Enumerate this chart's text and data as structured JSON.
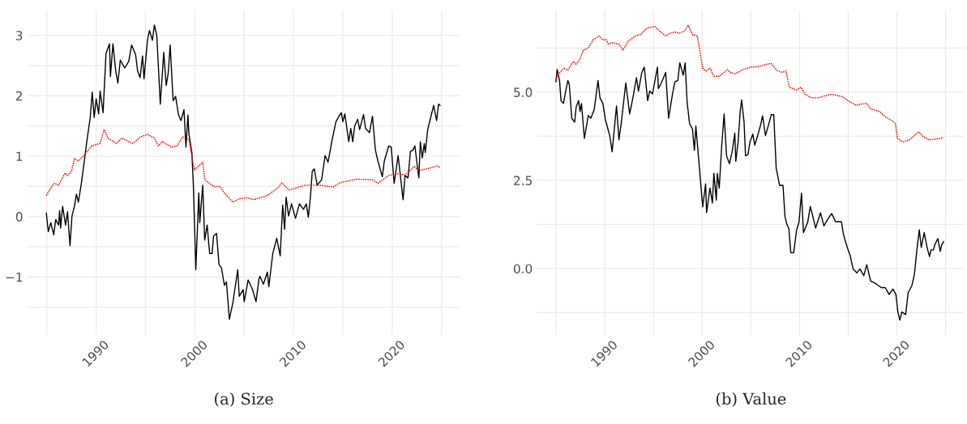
{
  "chart_data": [
    {
      "type": "line",
      "title": "(a) Size",
      "xlim": [
        1983.0,
        2026.9
      ],
      "ylim": [
        -1.96,
        3.41
      ],
      "xticks": [
        {
          "value": 1985,
          "label": null
        },
        1990,
        {
          "value": 1995,
          "label": null
        },
        2000,
        {
          "value": 2005,
          "label": null
        },
        2010,
        {
          "value": 2015,
          "label": null
        },
        2020,
        {
          "value": 2025,
          "label": null
        }
      ],
      "yticks": [
        {
          "value": -1.5,
          "label": null
        },
        {
          "value": -1,
          "label": "−1"
        },
        {
          "value": -0.5,
          "label": null
        },
        0,
        {
          "value": 0.5,
          "label": null
        },
        1,
        {
          "value": 1.5,
          "label": null
        },
        2,
        {
          "value": 2.5,
          "label": null
        },
        3
      ],
      "grid": true,
      "series": [
        {
          "color": "#000000",
          "line_style": "solid",
          "x": [
            1984.95,
            1985.15,
            1985.4,
            1985.7,
            1985.9,
            1986.2,
            1986.3,
            1986.4,
            1986.6,
            1986.9,
            1987.1,
            1987.35,
            1987.55,
            1987.8,
            1988.0,
            1988.2,
            1988.5,
            1988.8,
            1989.05,
            1989.4,
            1989.6,
            1989.8,
            1990.0,
            1990.25,
            1990.4,
            1990.7,
            1991.0,
            1991.35,
            1991.45,
            1991.7,
            1992.0,
            1992.2,
            1992.45,
            1992.9,
            1993.3,
            1993.6,
            1994.0,
            1994.2,
            1994.45,
            1994.7,
            1994.85,
            1995.2,
            1995.4,
            1995.7,
            1995.9,
            1996.15,
            1996.5,
            1996.85,
            1997.1,
            1997.3,
            1997.5,
            1997.8,
            1998.05,
            1998.35,
            1998.6,
            1998.9,
            1999.1,
            1999.3,
            1999.4,
            1999.7,
            1999.85,
            2000.1,
            2000.4,
            2000.5,
            2000.8,
            2001.0,
            2001.25,
            2001.5,
            2001.75,
            2001.9,
            2002.2,
            2002.45,
            2002.7,
            2003.0,
            2003.2,
            2003.5,
            2003.85,
            2004.35,
            2004.5,
            2004.9,
            2005.0,
            2005.4,
            2005.85,
            2006.2,
            2006.5,
            2006.6,
            2006.95,
            2007.35,
            2007.5,
            2007.9,
            2008.3,
            2008.65,
            2008.9,
            2009.1,
            2009.25,
            2009.5,
            2009.8,
            2010.2,
            2010.6,
            2011.0,
            2011.3,
            2011.5,
            2011.7,
            2011.9,
            2012.1,
            2012.4,
            2012.85,
            2013.2,
            2013.5,
            2013.9,
            2014.3,
            2014.6,
            2014.85,
            2015.0,
            2015.2,
            2015.6,
            2015.8,
            2016.0,
            2016.2,
            2016.5,
            2016.7,
            2017.1,
            2017.3,
            2017.7,
            2018.0,
            2018.3,
            2018.55,
            2019.0,
            2019.2,
            2019.65,
            2019.9,
            2020.2,
            2020.6,
            2021.1,
            2021.3,
            2021.6,
            2021.85,
            2022.1,
            2022.3,
            2022.5,
            2022.7,
            2022.85,
            2023.05,
            2023.25,
            2023.35,
            2023.6,
            2023.9,
            2024.2,
            2024.5,
            2024.7,
            2024.85
          ],
          "values": [
            0.06,
            -0.25,
            -0.1,
            -0.3,
            -0.05,
            -0.14,
            0.1,
            -0.19,
            0.17,
            -0.14,
            0.08,
            -0.48,
            0.01,
            0.17,
            0.37,
            0.24,
            0.55,
            0.92,
            1.24,
            1.64,
            2.06,
            1.64,
            1.95,
            1.7,
            2.08,
            1.72,
            2.7,
            2.86,
            2.32,
            2.86,
            2.39,
            2.21,
            2.59,
            2.46,
            2.57,
            2.84,
            2.68,
            2.41,
            2.3,
            2.66,
            2.28,
            2.92,
            3.08,
            2.92,
            3.17,
            2.99,
            1.86,
            2.72,
            2.17,
            2.37,
            2.84,
            1.92,
            1.99,
            1.68,
            1.59,
            1.77,
            1.15,
            1.68,
            1.37,
            1.06,
            0.52,
            -0.88,
            0.39,
            -0.1,
            0.52,
            -0.39,
            -0.14,
            -0.61,
            -0.61,
            -0.32,
            -0.28,
            -0.79,
            -0.85,
            -1.14,
            -1.08,
            -1.7,
            -1.43,
            -0.88,
            -1.32,
            -1.21,
            -1.41,
            -1.05,
            -1.21,
            -1.41,
            -1.03,
            -0.99,
            -1.12,
            -0.92,
            -1.16,
            -0.61,
            -0.36,
            -0.65,
            0.19,
            -0.21,
            0.32,
            0.01,
            0.21,
            -0.03,
            0.21,
            0.12,
            0.21,
            -0.01,
            0.3,
            0.75,
            0.79,
            0.52,
            0.61,
            1.01,
            0.9,
            1.26,
            1.57,
            1.66,
            1.72,
            1.57,
            1.7,
            1.24,
            1.46,
            1.24,
            1.5,
            1.61,
            1.44,
            1.69,
            1.46,
            1.39,
            1.66,
            1.1,
            0.92,
            0.66,
            0.92,
            1.17,
            1.15,
            0.55,
            1.01,
            0.28,
            0.68,
            0.64,
            1.08,
            1.1,
            1.17,
            0.9,
            0.64,
            1.24,
            0.97,
            1.21,
            1.06,
            1.44,
            1.64,
            1.84,
            1.59,
            1.86,
            1.84
          ]
        },
        {
          "color": "#ff0000",
          "line_style": "dotted",
          "x": [
            1984.95,
            1985.35,
            1985.75,
            1986.2,
            1986.85,
            1987.1,
            1987.5,
            1987.8,
            1988.2,
            1988.75,
            1989.55,
            1990.4,
            1990.8,
            1991.2,
            1992.05,
            1992.6,
            1993.7,
            1994.5,
            1995.2,
            1995.9,
            1996.3,
            1996.7,
            1997.65,
            1998.2,
            1998.75,
            1999.4,
            1999.95,
            2000.4,
            2000.8,
            2001.0,
            2001.9,
            2002.55,
            2003.0,
            2003.85,
            2004.6,
            2005.3,
            2006.0,
            2007.35,
            2008.45,
            2008.8,
            2009.55,
            2011.2,
            2012.55,
            2014.05,
            2014.7,
            2016.35,
            2018.0,
            2018.55,
            2019.65,
            2020.45,
            2021.3,
            2022.25,
            2022.65,
            2023.75,
            2024.6,
            2024.85
          ],
          "values": [
            0.35,
            0.46,
            0.55,
            0.52,
            0.72,
            0.68,
            0.75,
            0.96,
            0.92,
            1.01,
            1.17,
            1.21,
            1.44,
            1.3,
            1.21,
            1.3,
            1.21,
            1.32,
            1.36,
            1.3,
            1.17,
            1.24,
            1.15,
            1.17,
            1.32,
            1.28,
            0.77,
            0.84,
            0.9,
            0.61,
            0.5,
            0.5,
            0.39,
            0.24,
            0.3,
            0.31,
            0.28,
            0.35,
            0.48,
            0.56,
            0.44,
            0.52,
            0.52,
            0.49,
            0.56,
            0.62,
            0.61,
            0.55,
            0.68,
            0.71,
            0.69,
            0.83,
            0.76,
            0.8,
            0.84,
            0.81
          ]
        }
      ]
    },
    {
      "type": "line",
      "title": "(b) Value",
      "xlim": [
        1983.0,
        2027.0
      ],
      "ylim": [
        -1.88,
        7.31
      ],
      "xticks": [
        {
          "value": 1985,
          "label": null
        },
        1990,
        {
          "value": 1995,
          "label": null
        },
        2000,
        {
          "value": 2005,
          "label": null
        },
        2010,
        {
          "value": 2015,
          "label": null
        },
        2020,
        {
          "value": 2025,
          "label": null
        }
      ],
      "yticks": [
        {
          "value": -1.25,
          "label": null
        },
        {
          "value": 0,
          "label": "0.0"
        },
        {
          "value": 1.25,
          "label": null
        },
        {
          "value": 2.5,
          "label": "2.5"
        },
        {
          "value": 3.75,
          "label": null
        },
        {
          "value": 5,
          "label": "5.0"
        },
        {
          "value": 6.25,
          "label": null
        }
      ],
      "grid": true,
      "series": [
        {
          "color": "#000000",
          "line_style": "solid",
          "x": [
            1984.98,
            1985.1,
            1985.35,
            1985.5,
            1985.75,
            1985.95,
            1986.2,
            1986.35,
            1986.6,
            1986.9,
            1987.05,
            1987.3,
            1987.45,
            1987.6,
            1987.9,
            1988.3,
            1988.55,
            1988.9,
            1989.3,
            1989.5,
            1989.8,
            1990.05,
            1990.5,
            1990.75,
            1991.2,
            1991.45,
            1991.7,
            1992.15,
            1992.55,
            1992.9,
            1993.25,
            1993.45,
            1993.8,
            1994.05,
            1994.4,
            1994.6,
            1994.9,
            1995.15,
            1995.4,
            1995.5,
            1995.85,
            1996.25,
            1996.55,
            1996.95,
            1997.2,
            1997.5,
            1997.7,
            1998.05,
            1998.25,
            1998.45,
            1998.7,
            1999.0,
            1999.2,
            1999.35,
            1999.55,
            2000.05,
            2000.35,
            2000.45,
            2000.8,
            2001.05,
            2001.2,
            2001.45,
            2001.55,
            2001.75,
            2002.0,
            2002.25,
            2002.5,
            2002.8,
            2003.1,
            2003.35,
            2003.45,
            2003.7,
            2003.9,
            2004.05,
            2004.3,
            2004.45,
            2004.7,
            2004.9,
            2005.2,
            2005.4,
            2005.7,
            2006.0,
            2006.2,
            2006.5,
            2006.85,
            2007.1,
            2007.35,
            2007.6,
            2007.95,
            2008.3,
            2008.5,
            2008.7,
            2008.9,
            2009.1,
            2009.4,
            2009.7,
            2009.95,
            2010.2,
            2010.4,
            2010.85,
            2011.1,
            2011.4,
            2011.65,
            2012.15,
            2012.5,
            2012.9,
            2013.3,
            2013.7,
            2014.3,
            2014.5,
            2014.9,
            2015.2,
            2015.5,
            2015.9,
            2016.2,
            2016.6,
            2016.9,
            2017.3,
            2017.85,
            2018.4,
            2018.8,
            2019.2,
            2019.6,
            2019.9,
            2020.1,
            2020.3,
            2020.5,
            2020.9,
            2021.15,
            2021.55,
            2021.8,
            2022.05,
            2022.3,
            2022.5,
            2022.8,
            2023.1,
            2023.35,
            2023.5,
            2023.75,
            2023.9,
            2024.2,
            2024.45,
            2024.6,
            2024.8
          ],
          "values": [
            5.29,
            5.64,
            5.33,
            4.76,
            4.68,
            4.99,
            5.33,
            5.22,
            4.26,
            4.15,
            4.57,
            4.76,
            4.45,
            4.68,
            3.69,
            4.34,
            4.26,
            4.49,
            5.33,
            4.84,
            4.68,
            4.23,
            3.77,
            3.31,
            4.61,
            3.65,
            4.15,
            5.26,
            4.38,
            4.87,
            5.41,
            5.03,
            5.56,
            5.71,
            4.76,
            5.03,
            4.95,
            5.33,
            5.71,
            5.1,
            5.29,
            5.56,
            4.26,
            4.95,
            5.29,
            5.33,
            5.83,
            5.48,
            5.83,
            4.72,
            4.11,
            3.96,
            3.35,
            4.04,
            3.39,
            1.75,
            2.4,
            1.59,
            2.28,
            1.86,
            2.7,
            1.94,
            2.7,
            2.28,
            3.46,
            4.38,
            3.2,
            2.97,
            3.35,
            3.84,
            3.04,
            3.62,
            4.45,
            4.78,
            4.15,
            3.2,
            3.23,
            3.58,
            3.81,
            3.5,
            3.77,
            4.07,
            4.33,
            3.77,
            4.11,
            4.36,
            4.36,
            2.85,
            2.36,
            2.36,
            1.48,
            1.25,
            1.14,
            0.45,
            0.45,
            1.1,
            1.33,
            2.14,
            1.02,
            1.33,
            1.76,
            1.44,
            1.15,
            1.58,
            1.21,
            1.4,
            1.56,
            1.33,
            1.33,
            0.98,
            0.6,
            0.37,
            -0.01,
            -0.12,
            -0.01,
            -0.2,
            0.11,
            -0.35,
            -0.43,
            -0.54,
            -0.54,
            -0.73,
            -0.58,
            -0.73,
            -1.23,
            -1.46,
            -1.23,
            -1.3,
            -0.69,
            -0.47,
            -0.16,
            0.53,
            1.1,
            0.6,
            1.02,
            0.6,
            0.34,
            0.53,
            0.53,
            0.68,
            0.85,
            0.49,
            0.68,
            0.77
          ]
        },
        {
          "color": "#ff0000",
          "line_style": "dotted",
          "x": [
            1984.98,
            1985.25,
            1985.8,
            1986.2,
            1986.75,
            1987.05,
            1987.45,
            1987.8,
            1988.3,
            1988.8,
            1989.4,
            1989.8,
            1990.15,
            1990.35,
            1990.75,
            1991.45,
            1991.85,
            1992.4,
            1993.1,
            1993.65,
            1994.35,
            1995.15,
            1995.6,
            1996.25,
            1996.7,
            1997.2,
            1997.65,
            1998.2,
            1998.55,
            1999.0,
            1999.5,
            2000.05,
            2000.4,
            2000.8,
            2001.2,
            2001.75,
            2002.6,
            2002.85,
            2003.4,
            2004.2,
            2005.05,
            2005.9,
            2006.6,
            2007.1,
            2007.65,
            2008.2,
            2008.6,
            2008.95,
            2009.7,
            2010.15,
            2010.55,
            2011.25,
            2011.95,
            2012.5,
            2013.3,
            2014.4,
            2015.2,
            2015.8,
            2016.3,
            2016.9,
            2017.3,
            2018.25,
            2018.8,
            2019.5,
            2019.85,
            2020.05,
            2020.6,
            2021.3,
            2021.8,
            2022.25,
            2022.65,
            2023.3,
            2024.0,
            2024.8
          ],
          "values": [
            5.37,
            5.52,
            5.68,
            5.62,
            5.87,
            5.79,
            5.94,
            6.19,
            6.25,
            6.48,
            6.59,
            6.48,
            6.49,
            6.36,
            6.4,
            6.36,
            6.19,
            6.44,
            6.59,
            6.63,
            6.82,
            6.86,
            6.74,
            6.59,
            6.67,
            6.7,
            6.67,
            6.74,
            6.9,
            6.63,
            6.59,
            5.68,
            5.6,
            5.68,
            5.45,
            5.45,
            5.64,
            5.56,
            5.52,
            5.64,
            5.71,
            5.73,
            5.79,
            5.81,
            5.62,
            5.56,
            5.6,
            5.14,
            5.06,
            5.14,
            4.94,
            4.84,
            4.84,
            4.89,
            4.94,
            4.87,
            4.72,
            4.63,
            4.66,
            4.68,
            4.53,
            4.45,
            4.3,
            4.19,
            4.11,
            3.69,
            3.59,
            3.65,
            3.77,
            3.88,
            3.75,
            3.65,
            3.67,
            3.71
          ]
        }
      ]
    }
  ]
}
